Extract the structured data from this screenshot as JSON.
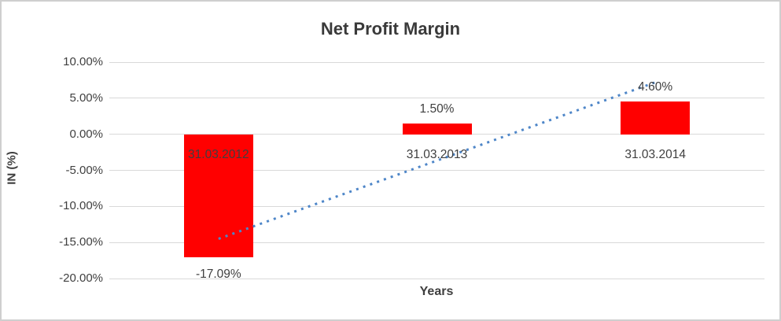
{
  "chart_data": {
    "type": "bar",
    "title": "Net Profit Margin",
    "xlabel": "Years",
    "ylabel": "IN (%)",
    "categories": [
      "31.03.2012",
      "31.03.2013",
      "31.03.2014"
    ],
    "values": [
      -17.09,
      1.5,
      4.6
    ],
    "data_labels": [
      "-17.09%",
      "1.50%",
      "4.60%"
    ],
    "yticks": [
      {
        "label": "10.00%",
        "value": 10
      },
      {
        "label": "5.00%",
        "value": 5
      },
      {
        "label": "0.00%",
        "value": 0
      },
      {
        "label": "-5.00%",
        "value": -5
      },
      {
        "label": "-10.00%",
        "value": -10
      },
      {
        "label": "-15.00%",
        "value": -15
      },
      {
        "label": "-20.00%",
        "value": -20
      }
    ],
    "ylim": [
      -20,
      10
    ],
    "grid": true,
    "legend": false,
    "trendline": {
      "style": "dotted",
      "from_category_index": 0,
      "to_category_index": 2,
      "start_value_pct": -14.5,
      "end_value_pct": 7.2
    },
    "colors": {
      "bar": "#ff0000",
      "trendline": "#4e86c8",
      "gridline": "#d9d9d9",
      "text": "#3f3f3f"
    }
  }
}
